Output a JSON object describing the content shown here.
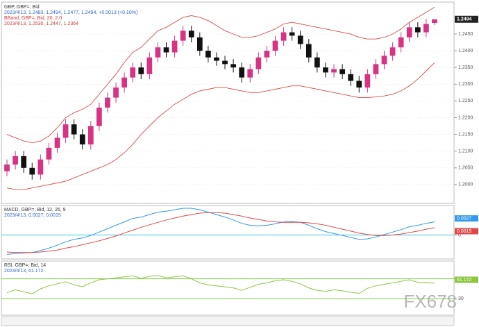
{
  "chart_data": [
    {
      "type": "candlestick",
      "title": "GBP, GBP=, Bid",
      "info": "2023/4/13, 1.2483, 1.2494, 1.2477, 1.2494, +0.0013 (+0.10%)",
      "up_color": "#d63384",
      "down_color": "#111111",
      "open": [
        1.204,
        1.206,
        1.2085,
        1.205,
        1.203,
        1.2075,
        1.211,
        1.214,
        1.218,
        1.215,
        1.212,
        1.2175,
        1.223,
        1.226,
        1.229,
        1.232,
        1.235,
        1.233,
        1.238,
        1.241,
        1.2395,
        1.243,
        1.246,
        1.244,
        1.24,
        1.238,
        1.237,
        1.236,
        1.235,
        1.232,
        1.2345,
        1.238,
        1.24,
        1.243,
        1.2455,
        1.2445,
        1.242,
        1.238,
        1.235,
        1.2335,
        1.2345,
        1.233,
        1.231,
        1.229,
        1.233,
        1.236,
        1.2385,
        1.241,
        1.244,
        1.247,
        1.2455,
        1.2483
      ],
      "high": [
        1.2075,
        1.21,
        1.21,
        1.2065,
        1.209,
        1.2125,
        1.2155,
        1.2195,
        1.2195,
        1.2165,
        1.219,
        1.2245,
        1.2275,
        1.2305,
        1.2335,
        1.2365,
        1.2365,
        1.2395,
        1.2425,
        1.2425,
        1.2445,
        1.2475,
        1.2475,
        1.2455,
        1.2415,
        1.2395,
        1.2385,
        1.2375,
        1.2365,
        1.236,
        1.2395,
        1.2415,
        1.2445,
        1.247,
        1.247,
        1.246,
        1.2435,
        1.2395,
        1.2365,
        1.236,
        1.236,
        1.2345,
        1.2325,
        1.2345,
        1.2375,
        1.24,
        1.2425,
        1.2455,
        1.2485,
        1.2485,
        1.2495,
        1.2494
      ],
      "low": [
        1.2025,
        1.2045,
        1.2035,
        1.2015,
        1.2015,
        1.206,
        1.2095,
        1.2125,
        1.2135,
        1.2105,
        1.2105,
        1.216,
        1.2215,
        1.2245,
        1.2275,
        1.2305,
        1.2315,
        1.2315,
        1.2365,
        1.238,
        1.238,
        1.2415,
        1.2425,
        1.2385,
        1.2365,
        1.2355,
        1.2345,
        1.2335,
        1.2305,
        1.2305,
        1.233,
        1.2365,
        1.2385,
        1.2415,
        1.243,
        1.2405,
        1.2365,
        1.2335,
        1.232,
        1.232,
        1.2315,
        1.2295,
        1.2275,
        1.2275,
        1.2315,
        1.2345,
        1.237,
        1.2395,
        1.2425,
        1.244,
        1.244,
        1.2477
      ],
      "close": [
        1.206,
        1.2085,
        1.205,
        1.203,
        1.2075,
        1.211,
        1.214,
        1.218,
        1.215,
        1.212,
        1.2175,
        1.223,
        1.226,
        1.229,
        1.232,
        1.235,
        1.233,
        1.238,
        1.241,
        1.2395,
        1.243,
        1.246,
        1.244,
        1.24,
        1.238,
        1.237,
        1.236,
        1.235,
        1.232,
        1.2345,
        1.238,
        1.24,
        1.243,
        1.2455,
        1.2445,
        1.242,
        1.238,
        1.235,
        1.2335,
        1.2345,
        1.233,
        1.231,
        1.229,
        1.233,
        1.236,
        1.2385,
        1.241,
        1.244,
        1.247,
        1.2455,
        1.248,
        1.2494
      ],
      "overlay": {
        "name": "BBand, GBP=, Bid, 20, 2.0",
        "info": "2023/4/13, 1.2530, 1.2447, 1.2364",
        "color": "#e04848",
        "upper": [
          1.215,
          1.214,
          1.213,
          1.2125,
          1.213,
          1.2145,
          1.217,
          1.22,
          1.2215,
          1.2225,
          1.224,
          1.227,
          1.23,
          1.233,
          1.2365,
          1.2395,
          1.241,
          1.2435,
          1.246,
          1.247,
          1.2485,
          1.25,
          1.2505,
          1.25,
          1.249,
          1.2475,
          1.246,
          1.245,
          1.244,
          1.244,
          1.2445,
          1.2455,
          1.2465,
          1.248,
          1.2485,
          1.248,
          1.2475,
          1.247,
          1.2465,
          1.246,
          1.2455,
          1.245,
          1.244,
          1.2435,
          1.2435,
          1.244,
          1.245,
          1.2465,
          1.2485,
          1.25,
          1.2515,
          1.253
        ],
        "lower": [
          1.199,
          1.1985,
          1.1985,
          1.199,
          1.1995,
          1.2,
          1.2005,
          1.201,
          1.202,
          1.203,
          1.204,
          1.205,
          1.206,
          1.2075,
          1.2095,
          1.212,
          1.215,
          1.2175,
          1.22,
          1.222,
          1.224,
          1.2255,
          1.227,
          1.228,
          1.2285,
          1.229,
          1.229,
          1.2285,
          1.228,
          1.2275,
          1.2275,
          1.228,
          1.2285,
          1.229,
          1.2295,
          1.2295,
          1.229,
          1.2285,
          1.228,
          1.2275,
          1.227,
          1.2265,
          1.226,
          1.226,
          1.2262,
          1.2265,
          1.227,
          1.228,
          1.2295,
          1.2315,
          1.234,
          1.2364
        ]
      },
      "ylim": [
        1.195,
        1.2535
      ],
      "yticks": [
        {
          "value": 1.2,
          "label": "1.2000"
        },
        {
          "value": 1.205,
          "label": "1.2050"
        },
        {
          "value": 1.21,
          "label": "1.2100"
        },
        {
          "value": 1.215,
          "label": "1.2150"
        },
        {
          "value": 1.22,
          "label": "1.2200"
        },
        {
          "value": 1.225,
          "label": "1.2250"
        },
        {
          "value": 1.23,
          "label": "1.2300"
        },
        {
          "value": 1.235,
          "label": "1.2350"
        },
        {
          "value": 1.24,
          "label": "1.2400"
        },
        {
          "value": 1.245,
          "label": "1.2450"
        }
      ],
      "grid": true,
      "grid_color": "#e2e2e2"
    },
    {
      "type": "line",
      "title": "MACD, GBP=, Bid, 12, 26, 9",
      "info": "2023/4/13, 0.0027, 0.0015",
      "series": [
        {
          "color": "#3399ee",
          "values": [
            -0.004,
            -0.0038,
            -0.0037,
            -0.0036,
            -0.0032,
            -0.0027,
            -0.0021,
            -0.0014,
            -0.0009,
            -0.0006,
            -0.0001,
            0.0006,
            0.0013,
            0.002,
            0.0027,
            0.0034,
            0.0037,
            0.0042,
            0.0047,
            0.0049,
            0.0052,
            0.0055,
            0.0055,
            0.0052,
            0.0047,
            0.0042,
            0.0037,
            0.0031,
            0.0024,
            0.002,
            0.0019,
            0.002,
            0.0023,
            0.0027,
            0.0028,
            0.0026,
            0.002,
            0.0013,
            0.0007,
            0.0003,
            -0.0001,
            -0.0005,
            -0.0009,
            -0.0008,
            -0.0004,
            0.0001,
            0.0006,
            0.0011,
            0.0017,
            0.002,
            0.0024,
            0.0027
          ]
        },
        {
          "color": "#e04848",
          "values": [
            -0.0035,
            -0.0036,
            -0.0036,
            -0.0036,
            -0.0035,
            -0.0033,
            -0.0031,
            -0.0027,
            -0.0024,
            -0.002,
            -0.0016,
            -0.0012,
            -0.0007,
            -0.0002,
            0.0004,
            0.001,
            0.0016,
            0.0021,
            0.0026,
            0.0031,
            0.0035,
            0.0039,
            0.0042,
            0.0045,
            0.0046,
            0.0046,
            0.0045,
            0.0042,
            0.0039,
            0.0035,
            0.0032,
            0.0029,
            0.0027,
            0.0026,
            0.0026,
            0.0026,
            0.0025,
            0.0023,
            0.002,
            0.0016,
            0.0012,
            0.0008,
            0.0004,
            0.0001,
            -0.0001,
            -0.0001,
            0.0,
            0.0002,
            0.0005,
            0.0008,
            0.0012,
            0.0015
          ]
        }
      ],
      "ylim": [
        -0.0045,
        0.0055
      ],
      "yticks": [
        0
      ],
      "grid": true,
      "grid_color": "#33c4dd"
    },
    {
      "type": "line",
      "title": "RSI, GBP=, Bid, 14",
      "info": "2023/4/13, 61.172",
      "series": [
        {
          "color": "#8cc63f",
          "values": [
            42,
            48,
            44,
            40,
            50,
            56,
            60,
            64,
            58,
            54,
            62,
            68,
            70,
            72,
            74,
            76,
            71,
            75,
            77,
            72,
            74,
            76,
            70,
            62,
            58,
            56,
            54,
            52,
            47,
            53,
            59,
            62,
            66,
            68,
            65,
            60,
            52,
            47,
            45,
            48,
            46,
            43,
            41,
            51,
            56,
            59,
            62,
            65,
            68,
            63,
            63,
            61.172
          ]
        }
      ],
      "ylim": [
        0,
        100
      ],
      "yticks": [
        30,
        70
      ],
      "grid": true,
      "grid_color": "#7cc242"
    }
  ],
  "watermark": "FX678"
}
